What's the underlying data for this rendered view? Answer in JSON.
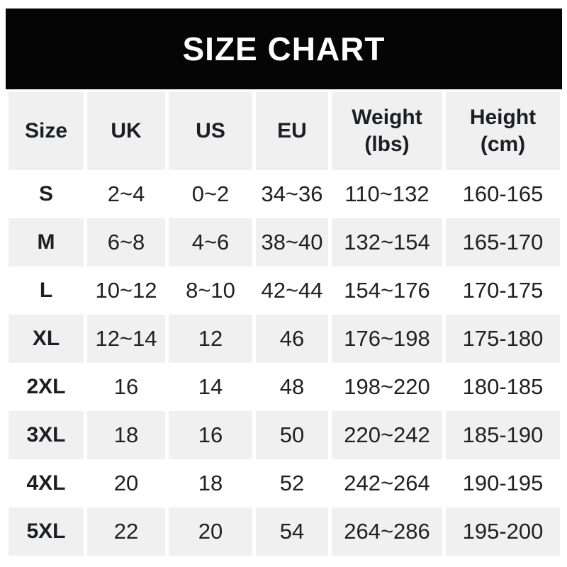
{
  "banner": {
    "title": "SIZE CHART"
  },
  "colors": {
    "banner_bg": "#050505",
    "banner_text": "#ffffff",
    "row_shade_bg": "#f0f0f0",
    "row_plain_bg": "#ffffff",
    "text": "#212121"
  },
  "chart_data": {
    "type": "table",
    "title": "SIZE CHART",
    "columns": [
      {
        "label": "Size",
        "sub": ""
      },
      {
        "label": "UK",
        "sub": ""
      },
      {
        "label": "US",
        "sub": ""
      },
      {
        "label": "EU",
        "sub": ""
      },
      {
        "label": "Weight",
        "sub": "(lbs)"
      },
      {
        "label": "Height",
        "sub": "(cm)"
      }
    ],
    "rows": [
      {
        "size": "S",
        "uk": "2~4",
        "us": "0~2",
        "eu": "34~36",
        "weight": "110~132",
        "height": "160-165"
      },
      {
        "size": "M",
        "uk": "6~8",
        "us": "4~6",
        "eu": "38~40",
        "weight": "132~154",
        "height": "165-170"
      },
      {
        "size": "L",
        "uk": "10~12",
        "us": "8~10",
        "eu": "42~44",
        "weight": "154~176",
        "height": "170-175"
      },
      {
        "size": "XL",
        "uk": "12~14",
        "us": "12",
        "eu": "46",
        "weight": "176~198",
        "height": "175-180"
      },
      {
        "size": "2XL",
        "uk": "16",
        "us": "14",
        "eu": "48",
        "weight": "198~220",
        "height": "180-185"
      },
      {
        "size": "3XL",
        "uk": "18",
        "us": "16",
        "eu": "50",
        "weight": "220~242",
        "height": "185-190"
      },
      {
        "size": "4XL",
        "uk": "20",
        "us": "18",
        "eu": "52",
        "weight": "242~264",
        "height": "190-195"
      },
      {
        "size": "5XL",
        "uk": "22",
        "us": "20",
        "eu": "54",
        "weight": "264~286",
        "height": "195-200"
      }
    ]
  }
}
